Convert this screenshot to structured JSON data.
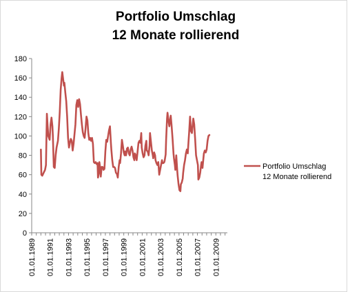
{
  "chart_data": {
    "type": "line",
    "title": [
      "Portfolio Umschlag",
      "12 Monate rollierend"
    ],
    "xlabel": "",
    "ylabel": "",
    "ylim": [
      0,
      180
    ],
    "yticks": [
      "0",
      "20",
      "40",
      "60",
      "80",
      "100",
      "120",
      "140",
      "160",
      "180"
    ],
    "xlim": [
      1989.0,
      2010.25
    ],
    "xticks": [
      {
        "year": 1989,
        "label": "01.01.1989"
      },
      {
        "year": 1991,
        "label": "01.01.1991"
      },
      {
        "year": 1993,
        "label": "01.01.1993"
      },
      {
        "year": 1995,
        "label": "01.01.1995"
      },
      {
        "year": 1997,
        "label": "01.01.1997"
      },
      {
        "year": 1999,
        "label": "01.01.1999"
      },
      {
        "year": 2001,
        "label": "01.01.2001"
      },
      {
        "year": 2003,
        "label": "01.01.2003"
      },
      {
        "year": 2005,
        "label": "01.01.2005"
      },
      {
        "year": 2007,
        "label": "01.01.2007"
      },
      {
        "year": 2009,
        "label": "01.01.2009"
      }
    ],
    "grid": false,
    "legend": "right",
    "series": [
      {
        "name": "Portfolio Umschlag\n12 Monate rollierend",
        "color": "#c0504d",
        "points": [
          [
            1990.0,
            86
          ],
          [
            1990.05,
            60
          ],
          [
            1990.15,
            59
          ],
          [
            1990.3,
            62
          ],
          [
            1990.45,
            65
          ],
          [
            1990.55,
            70
          ],
          [
            1990.65,
            123
          ],
          [
            1990.7,
            115
          ],
          [
            1990.8,
            100
          ],
          [
            1990.95,
            96
          ],
          [
            1991.05,
            112
          ],
          [
            1991.15,
            119
          ],
          [
            1991.25,
            110
          ],
          [
            1991.3,
            100
          ],
          [
            1991.4,
            68
          ],
          [
            1991.5,
            67
          ],
          [
            1991.6,
            80
          ],
          [
            1991.7,
            88
          ],
          [
            1991.85,
            95
          ],
          [
            1991.95,
            108
          ],
          [
            1992.05,
            125
          ],
          [
            1992.15,
            148
          ],
          [
            1992.25,
            160
          ],
          [
            1992.32,
            166
          ],
          [
            1992.4,
            160
          ],
          [
            1992.5,
            152
          ],
          [
            1992.55,
            155
          ],
          [
            1992.65,
            145
          ],
          [
            1992.75,
            136
          ],
          [
            1992.85,
            120
          ],
          [
            1992.95,
            98
          ],
          [
            1993.05,
            88
          ],
          [
            1993.15,
            93
          ],
          [
            1993.25,
            97
          ],
          [
            1993.35,
            95
          ],
          [
            1993.45,
            85
          ],
          [
            1993.55,
            92
          ],
          [
            1993.65,
            102
          ],
          [
            1993.75,
            112
          ],
          [
            1993.85,
            132
          ],
          [
            1993.95,
            137
          ],
          [
            1994.05,
            130
          ],
          [
            1994.15,
            138
          ],
          [
            1994.25,
            133
          ],
          [
            1994.35,
            122
          ],
          [
            1994.45,
            112
          ],
          [
            1994.55,
            104
          ],
          [
            1994.65,
            100
          ],
          [
            1994.75,
            98
          ],
          [
            1994.85,
            108
          ],
          [
            1994.95,
            120
          ],
          [
            1995.05,
            116
          ],
          [
            1995.15,
            103
          ],
          [
            1995.25,
            96
          ],
          [
            1995.35,
            98
          ],
          [
            1995.45,
            95
          ],
          [
            1995.55,
            98
          ],
          [
            1995.65,
            92
          ],
          [
            1995.75,
            73
          ],
          [
            1995.85,
            72
          ],
          [
            1995.95,
            73
          ],
          [
            1996.05,
            71
          ],
          [
            1996.15,
            72
          ],
          [
            1996.2,
            57
          ],
          [
            1996.3,
            62
          ],
          [
            1996.35,
            73
          ],
          [
            1996.45,
            66
          ],
          [
            1996.5,
            58
          ],
          [
            1996.6,
            68
          ],
          [
            1996.7,
            68
          ],
          [
            1996.8,
            65
          ],
          [
            1996.9,
            66
          ],
          [
            1997.0,
            84
          ],
          [
            1997.1,
            96
          ],
          [
            1997.2,
            94
          ],
          [
            1997.3,
            100
          ],
          [
            1997.4,
            106
          ],
          [
            1997.5,
            110
          ],
          [
            1997.6,
            93
          ],
          [
            1997.65,
            86
          ],
          [
            1997.75,
            75
          ],
          [
            1997.85,
            68
          ],
          [
            1997.95,
            68
          ],
          [
            1998.05,
            67
          ],
          [
            1998.15,
            62
          ],
          [
            1998.25,
            61
          ],
          [
            1998.35,
            57
          ],
          [
            1998.45,
            68
          ],
          [
            1998.55,
            75
          ],
          [
            1998.6,
            72
          ],
          [
            1998.7,
            82
          ],
          [
            1998.8,
            96
          ],
          [
            1998.9,
            90
          ],
          [
            1999.0,
            83
          ],
          [
            1999.1,
            80
          ],
          [
            1999.15,
            84
          ],
          [
            1999.25,
            80
          ],
          [
            1999.35,
            87
          ],
          [
            1999.45,
            88
          ],
          [
            1999.55,
            82
          ],
          [
            1999.65,
            80
          ],
          [
            1999.75,
            86
          ],
          [
            1999.85,
            89
          ],
          [
            1999.95,
            85
          ],
          [
            2000.05,
            78
          ],
          [
            2000.15,
            75
          ],
          [
            2000.2,
            82
          ],
          [
            2000.3,
            80
          ],
          [
            2000.4,
            75
          ],
          [
            2000.5,
            84
          ],
          [
            2000.6,
            93
          ],
          [
            2000.7,
            95
          ],
          [
            2000.8,
            93
          ],
          [
            2000.9,
            103
          ],
          [
            2000.95,
            88
          ],
          [
            2001.05,
            82
          ],
          [
            2001.15,
            78
          ],
          [
            2001.25,
            80
          ],
          [
            2001.35,
            90
          ],
          [
            2001.45,
            95
          ],
          [
            2001.5,
            85
          ],
          [
            2001.6,
            84
          ],
          [
            2001.7,
            80
          ],
          [
            2001.8,
            90
          ],
          [
            2001.85,
            103
          ],
          [
            2001.95,
            94
          ],
          [
            2002.05,
            85
          ],
          [
            2002.15,
            80
          ],
          [
            2002.2,
            77
          ],
          [
            2002.3,
            83
          ],
          [
            2002.4,
            80
          ],
          [
            2002.45,
            75
          ],
          [
            2002.55,
            72
          ],
          [
            2002.65,
            70
          ],
          [
            2002.75,
            73
          ],
          [
            2002.85,
            60
          ],
          [
            2002.95,
            65
          ],
          [
            2003.05,
            70
          ],
          [
            2003.15,
            75
          ],
          [
            2003.2,
            72
          ],
          [
            2003.3,
            72
          ],
          [
            2003.4,
            73
          ],
          [
            2003.45,
            75
          ],
          [
            2003.55,
            81
          ],
          [
            2003.6,
            96
          ],
          [
            2003.7,
            118
          ],
          [
            2003.75,
            124
          ],
          [
            2003.85,
            116
          ],
          [
            2003.95,
            110
          ],
          [
            2004.05,
            118
          ],
          [
            2004.1,
            121
          ],
          [
            2004.2,
            110
          ],
          [
            2004.3,
            97
          ],
          [
            2004.4,
            82
          ],
          [
            2004.45,
            77
          ],
          [
            2004.55,
            70
          ],
          [
            2004.6,
            65
          ],
          [
            2004.7,
            80
          ],
          [
            2004.8,
            65
          ],
          [
            2004.85,
            59
          ],
          [
            2004.95,
            50
          ],
          [
            2005.05,
            44
          ],
          [
            2005.15,
            43
          ],
          [
            2005.2,
            50
          ],
          [
            2005.3,
            52
          ],
          [
            2005.4,
            56
          ],
          [
            2005.45,
            62
          ],
          [
            2005.55,
            70
          ],
          [
            2005.65,
            75
          ],
          [
            2005.75,
            82
          ],
          [
            2005.85,
            86
          ],
          [
            2005.95,
            82
          ],
          [
            2006.05,
            97
          ],
          [
            2006.1,
            104
          ],
          [
            2006.2,
            120
          ],
          [
            2006.3,
            105
          ],
          [
            2006.4,
            103
          ],
          [
            2006.5,
            113
          ],
          [
            2006.55,
            118
          ],
          [
            2006.65,
            112
          ],
          [
            2006.75,
            97
          ],
          [
            2006.85,
            80
          ],
          [
            2006.95,
            75
          ],
          [
            2007.05,
            70
          ],
          [
            2007.1,
            55
          ],
          [
            2007.2,
            57
          ],
          [
            2007.3,
            62
          ],
          [
            2007.4,
            70
          ],
          [
            2007.45,
            73
          ],
          [
            2007.55,
            67
          ],
          [
            2007.6,
            72
          ],
          [
            2007.7,
            82
          ],
          [
            2007.8,
            85
          ],
          [
            2007.9,
            83
          ],
          [
            2008.0,
            86
          ],
          [
            2008.1,
            95
          ],
          [
            2008.2,
            100
          ],
          [
            2008.3,
            101
          ]
        ]
      }
    ]
  }
}
